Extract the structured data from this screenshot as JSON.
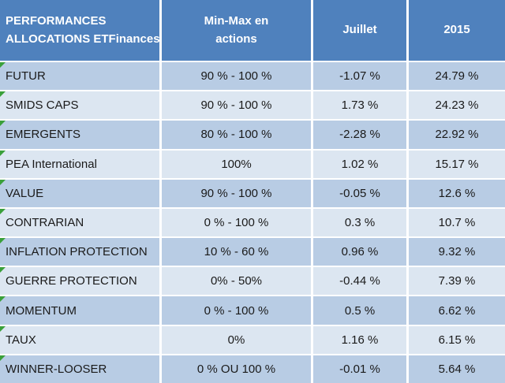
{
  "header": {
    "col1": {
      "line1": "PERFORMANCES",
      "line2": "ALLOCATIONS ETFinances"
    },
    "col2": {
      "line1": "Min-Max en",
      "line2": "actions"
    },
    "col3": "Juillet",
    "col4": "2015"
  },
  "table": {
    "rows": [
      {
        "name": "FUTUR",
        "min_max": "90 % - 100 %",
        "juillet": "-1.07 %",
        "y2015": "24.79 %"
      },
      {
        "name": "SMIDS CAPS",
        "min_max": "90 % - 100 %",
        "juillet": "1.73 %",
        "y2015": "24.23 %"
      },
      {
        "name": "EMERGENTS",
        "min_max": "80 % - 100 %",
        "juillet": "-2.28 %",
        "y2015": "22.92 %"
      },
      {
        "name": "PEA International",
        "min_max": "100%",
        "juillet": "1.02 %",
        "y2015": "15.17 %"
      },
      {
        "name": "VALUE",
        "min_max": "90 % - 100 %",
        "juillet": "-0.05 %",
        "y2015": "12.6 %"
      },
      {
        "name": "CONTRARIAN",
        "min_max": "0 % - 100 %",
        "juillet": "0.3 %",
        "y2015": "10.7 %"
      },
      {
        "name": "INFLATION PROTECTION",
        "min_max": "10 % - 60 %",
        "juillet": "0.96 %",
        "y2015": "9.32 %"
      },
      {
        "name": "GUERRE PROTECTION",
        "min_max": "0% - 50%",
        "juillet": "-0.44 %",
        "y2015": "7.39 %"
      },
      {
        "name": "MOMENTUM",
        "min_max": "0 % - 100 %",
        "juillet": "0.5 %",
        "y2015": "6.62 %"
      },
      {
        "name": "TAUX",
        "min_max": "0%",
        "juillet": "1.16 %",
        "y2015": "6.15 %"
      },
      {
        "name": "WINNER-LOOSER",
        "min_max": "0 % OU 100 %",
        "juillet": "-0.01 %",
        "y2015": "5.64 %"
      }
    ]
  },
  "colors": {
    "header_bg": "#4F81BD",
    "band_dark": "#B8CCE4",
    "band_light": "#DCE6F1",
    "separator": "#FFFFFF",
    "flag_green": "#3AA03A",
    "body_text": "#1A1A1A",
    "header_text": "#FFFFFF"
  }
}
